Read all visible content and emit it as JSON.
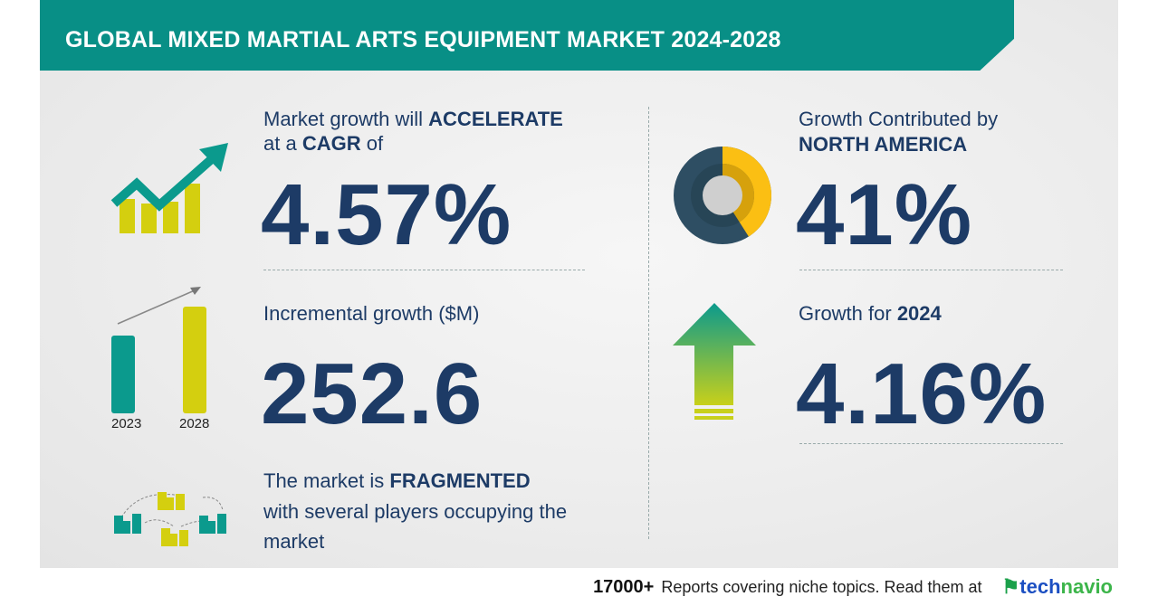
{
  "title": "GLOBAL MIXED MARTIAL ARTS EQUIPMENT MARKET 2024-2028",
  "cagr": {
    "line1_pre": "Market growth will ",
    "line1_bold": "ACCELERATE",
    "line2_pre": "at a ",
    "line2_bold": "CAGR",
    "line2_post": "  of",
    "value": "4.57%"
  },
  "incremental": {
    "label": "Incremental growth ($M)",
    "value": "252.6",
    "year_start": "2023",
    "year_end": "2028"
  },
  "market": {
    "pre": "The market is ",
    "bold": "FRAGMENTED",
    "line2": "with several players occupying the",
    "line3": "market"
  },
  "region": {
    "line1": "Growth Contributed by",
    "line2": "NORTH AMERICA",
    "value": "41%",
    "share_percent": 41
  },
  "growth_year": {
    "pre": "Growth for ",
    "year": "2024",
    "value": "4.16%"
  },
  "footer": {
    "count": "17000+",
    "text": "Reports covering niche topics. Read them at",
    "logo_a": "tech",
    "logo_b": "navio"
  },
  "colors": {
    "teal": "#088f86",
    "navy": "#1d3b66",
    "yellow": "#d4cf0f",
    "pie_yellow": "#fbbf13",
    "pie_dark": "#2e4e63"
  }
}
